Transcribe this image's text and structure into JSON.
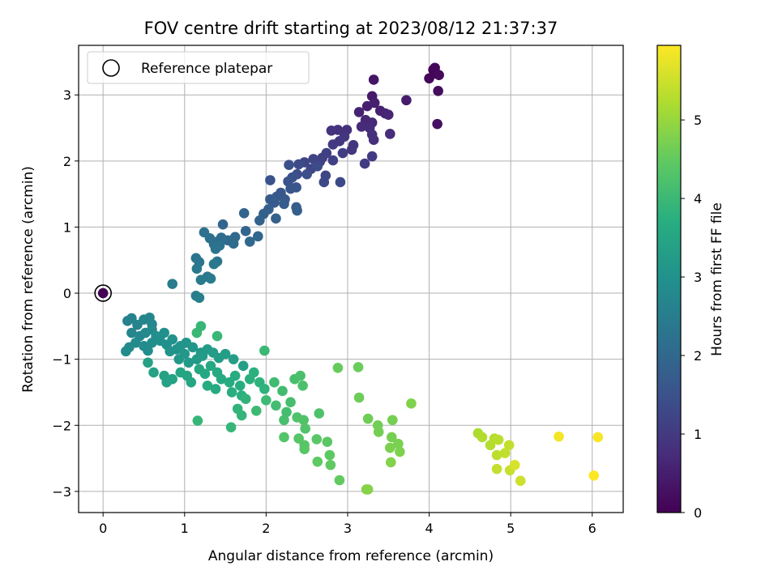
{
  "chart_data": {
    "type": "scatter",
    "title": "FOV centre drift starting at 2023/08/12 21:37:37",
    "xlabel": "Angular distance from reference (arcmin)",
    "ylabel": "Rotation from reference (arcmin)",
    "xlim": [
      -0.3,
      6.38
    ],
    "ylim": [
      -3.32,
      3.75
    ],
    "xticks": [
      0,
      1,
      2,
      3,
      4,
      5,
      6
    ],
    "yticks": [
      -3,
      -2,
      -1,
      0,
      1,
      2,
      3
    ],
    "xtick_labels": [
      "0",
      "1",
      "2",
      "3",
      "4",
      "5",
      "6"
    ],
    "ytick_labels": [
      "−3",
      "−2",
      "−1",
      "0",
      "1",
      "2",
      "3"
    ],
    "grid": true,
    "legend": {
      "placement": "upper-left",
      "label": "Reference platepar"
    },
    "reference_point": {
      "x": 0,
      "y": 0,
      "hours": 0
    },
    "colorbar": {
      "label": "Hours from first FF file",
      "range": [
        0,
        5.95
      ],
      "ticks": [
        0,
        1,
        2,
        3,
        4,
        5
      ],
      "tick_labels": [
        "0",
        "1",
        "2",
        "3",
        "4",
        "5"
      ],
      "colormap": "viridis"
    },
    "points": [
      {
        "x": 4.05,
        "y": 3.38,
        "t": 0.05
      },
      {
        "x": 4.09,
        "y": 3.32,
        "t": 0.07
      },
      {
        "x": 4.0,
        "y": 3.25,
        "t": 0.1
      },
      {
        "x": 4.07,
        "y": 3.41,
        "t": 0.12
      },
      {
        "x": 4.12,
        "y": 3.3,
        "t": 0.15
      },
      {
        "x": 4.11,
        "y": 3.06,
        "t": 0.2
      },
      {
        "x": 4.1,
        "y": 2.56,
        "t": 0.25
      },
      {
        "x": 3.32,
        "y": 3.23,
        "t": 0.35
      },
      {
        "x": 3.3,
        "y": 2.98,
        "t": 0.4
      },
      {
        "x": 3.72,
        "y": 2.92,
        "t": 0.45
      },
      {
        "x": 3.24,
        "y": 2.83,
        "t": 0.5
      },
      {
        "x": 3.33,
        "y": 2.88,
        "t": 0.52
      },
      {
        "x": 3.4,
        "y": 2.76,
        "t": 0.55
      },
      {
        "x": 3.14,
        "y": 2.74,
        "t": 0.58
      },
      {
        "x": 3.46,
        "y": 2.72,
        "t": 0.6
      },
      {
        "x": 3.5,
        "y": 2.7,
        "t": 0.62
      },
      {
        "x": 3.22,
        "y": 2.62,
        "t": 0.65
      },
      {
        "x": 3.3,
        "y": 2.58,
        "t": 0.68
      },
      {
        "x": 3.17,
        "y": 2.52,
        "t": 0.7
      },
      {
        "x": 3.27,
        "y": 2.5,
        "t": 0.72
      },
      {
        "x": 3.52,
        "y": 2.41,
        "t": 0.75
      },
      {
        "x": 3.3,
        "y": 2.4,
        "t": 0.78
      },
      {
        "x": 3.32,
        "y": 2.32,
        "t": 0.8
      },
      {
        "x": 2.99,
        "y": 2.47,
        "t": 0.82
      },
      {
        "x": 2.88,
        "y": 2.47,
        "t": 0.85
      },
      {
        "x": 2.8,
        "y": 2.46,
        "t": 0.87
      },
      {
        "x": 2.96,
        "y": 2.37,
        "t": 0.9
      },
      {
        "x": 3.07,
        "y": 2.24,
        "t": 0.92
      },
      {
        "x": 3.05,
        "y": 2.17,
        "t": 0.95
      },
      {
        "x": 2.9,
        "y": 2.3,
        "t": 0.97
      },
      {
        "x": 2.82,
        "y": 2.25,
        "t": 1.0
      },
      {
        "x": 3.3,
        "y": 2.07,
        "t": 1.02
      },
      {
        "x": 3.21,
        "y": 1.96,
        "t": 1.05
      },
      {
        "x": 2.94,
        "y": 2.12,
        "t": 1.07
      },
      {
        "x": 2.74,
        "y": 2.12,
        "t": 1.1
      },
      {
        "x": 2.69,
        "y": 2.05,
        "t": 1.12
      },
      {
        "x": 2.82,
        "y": 2.01,
        "t": 1.15
      },
      {
        "x": 2.66,
        "y": 1.99,
        "t": 1.17
      },
      {
        "x": 2.58,
        "y": 2.03,
        "t": 1.2
      },
      {
        "x": 2.47,
        "y": 1.98,
        "t": 1.22
      },
      {
        "x": 2.55,
        "y": 1.88,
        "t": 1.25
      },
      {
        "x": 2.73,
        "y": 1.78,
        "t": 1.27
      },
      {
        "x": 2.71,
        "y": 1.68,
        "t": 1.3
      },
      {
        "x": 2.91,
        "y": 1.68,
        "t": 1.32
      },
      {
        "x": 2.63,
        "y": 1.92,
        "t": 1.35
      },
      {
        "x": 2.4,
        "y": 1.95,
        "t": 1.37
      },
      {
        "x": 2.38,
        "y": 1.8,
        "t": 1.4
      },
      {
        "x": 2.5,
        "y": 1.8,
        "t": 1.42
      },
      {
        "x": 2.28,
        "y": 1.94,
        "t": 1.45
      },
      {
        "x": 2.32,
        "y": 1.75,
        "t": 1.47
      },
      {
        "x": 2.27,
        "y": 1.69,
        "t": 1.5
      },
      {
        "x": 2.05,
        "y": 1.71,
        "t": 1.52
      },
      {
        "x": 2.37,
        "y": 1.6,
        "t": 1.55
      },
      {
        "x": 2.3,
        "y": 1.58,
        "t": 1.57
      },
      {
        "x": 2.18,
        "y": 1.52,
        "t": 1.6
      },
      {
        "x": 2.13,
        "y": 1.46,
        "t": 1.62
      },
      {
        "x": 2.23,
        "y": 1.42,
        "t": 1.65
      },
      {
        "x": 2.05,
        "y": 1.42,
        "t": 1.67
      },
      {
        "x": 2.1,
        "y": 1.37,
        "t": 1.7
      },
      {
        "x": 2.22,
        "y": 1.35,
        "t": 1.72
      },
      {
        "x": 2.37,
        "y": 1.3,
        "t": 1.75
      },
      {
        "x": 2.38,
        "y": 1.25,
        "t": 1.77
      },
      {
        "x": 2.03,
        "y": 1.27,
        "t": 1.8
      },
      {
        "x": 1.97,
        "y": 1.2,
        "t": 1.82
      },
      {
        "x": 2.12,
        "y": 1.13,
        "t": 1.85
      },
      {
        "x": 1.92,
        "y": 1.1,
        "t": 1.87
      },
      {
        "x": 1.73,
        "y": 1.21,
        "t": 1.9
      },
      {
        "x": 1.47,
        "y": 1.04,
        "t": 1.92
      },
      {
        "x": 1.75,
        "y": 0.94,
        "t": 1.95
      },
      {
        "x": 1.9,
        "y": 0.86,
        "t": 1.97
      },
      {
        "x": 1.8,
        "y": 0.78,
        "t": 2.0
      },
      {
        "x": 1.62,
        "y": 0.85,
        "t": 2.02
      },
      {
        "x": 1.53,
        "y": 0.8,
        "t": 2.05
      },
      {
        "x": 1.6,
        "y": 0.75,
        "t": 2.07
      },
      {
        "x": 1.45,
        "y": 0.84,
        "t": 2.1
      },
      {
        "x": 1.4,
        "y": 0.78,
        "t": 2.12
      },
      {
        "x": 1.36,
        "y": 0.74,
        "t": 2.15
      },
      {
        "x": 1.31,
        "y": 0.83,
        "t": 2.17
      },
      {
        "x": 1.24,
        "y": 0.92,
        "t": 2.2
      },
      {
        "x": 1.43,
        "y": 0.72,
        "t": 2.22
      },
      {
        "x": 1.38,
        "y": 0.67,
        "t": 2.25
      },
      {
        "x": 1.14,
        "y": 0.53,
        "t": 2.27
      },
      {
        "x": 1.18,
        "y": 0.47,
        "t": 2.3
      },
      {
        "x": 1.4,
        "y": 0.48,
        "t": 2.32
      },
      {
        "x": 1.36,
        "y": 0.44,
        "t": 2.35
      },
      {
        "x": 1.15,
        "y": 0.37,
        "t": 2.37
      },
      {
        "x": 1.28,
        "y": 0.25,
        "t": 2.4
      },
      {
        "x": 1.2,
        "y": 0.2,
        "t": 2.42
      },
      {
        "x": 1.32,
        "y": 0.22,
        "t": 2.45
      },
      {
        "x": 0.85,
        "y": 0.14,
        "t": 2.47
      },
      {
        "x": 1.14,
        "y": -0.04,
        "t": 2.5
      },
      {
        "x": 1.18,
        "y": -0.07,
        "t": 2.52
      },
      {
        "x": 0.3,
        "y": -0.42,
        "t": 2.6
      },
      {
        "x": 0.35,
        "y": -0.38,
        "t": 2.62
      },
      {
        "x": 0.42,
        "y": -0.48,
        "t": 2.64
      },
      {
        "x": 0.5,
        "y": -0.4,
        "t": 2.66
      },
      {
        "x": 0.57,
        "y": -0.37,
        "t": 2.68
      },
      {
        "x": 0.6,
        "y": -0.47,
        "t": 2.7
      },
      {
        "x": 0.35,
        "y": -0.6,
        "t": 2.72
      },
      {
        "x": 0.45,
        "y": -0.65,
        "t": 2.74
      },
      {
        "x": 0.52,
        "y": -0.6,
        "t": 2.76
      },
      {
        "x": 0.6,
        "y": -0.55,
        "t": 2.78
      },
      {
        "x": 0.4,
        "y": -0.75,
        "t": 2.8
      },
      {
        "x": 0.32,
        "y": -0.82,
        "t": 2.82
      },
      {
        "x": 0.28,
        "y": -0.88,
        "t": 2.84
      },
      {
        "x": 0.5,
        "y": -0.8,
        "t": 2.86
      },
      {
        "x": 0.55,
        "y": -0.87,
        "t": 2.88
      },
      {
        "x": 0.6,
        "y": -0.75,
        "t": 2.9
      },
      {
        "x": 0.65,
        "y": -0.65,
        "t": 2.92
      },
      {
        "x": 0.75,
        "y": -0.6,
        "t": 2.94
      },
      {
        "x": 0.7,
        "y": -0.72,
        "t": 2.96
      },
      {
        "x": 0.78,
        "y": -0.78,
        "t": 2.98
      },
      {
        "x": 0.85,
        "y": -0.7,
        "t": 3.0
      },
      {
        "x": 0.9,
        "y": -0.85,
        "t": 3.02
      },
      {
        "x": 0.82,
        "y": -0.88,
        "t": 3.04
      },
      {
        "x": 0.95,
        "y": -0.8,
        "t": 3.06
      },
      {
        "x": 1.02,
        "y": -0.75,
        "t": 3.08
      },
      {
        "x": 1.1,
        "y": -0.82,
        "t": 3.1
      },
      {
        "x": 1.2,
        "y": -0.9,
        "t": 3.12
      },
      {
        "x": 1.0,
        "y": -0.92,
        "t": 3.14
      },
      {
        "x": 0.93,
        "y": -1.0,
        "t": 3.16
      },
      {
        "x": 1.05,
        "y": -1.05,
        "t": 3.18
      },
      {
        "x": 1.15,
        "y": -1.0,
        "t": 3.2
      },
      {
        "x": 1.22,
        "y": -0.95,
        "t": 3.22
      },
      {
        "x": 1.28,
        "y": -0.85,
        "t": 3.24
      },
      {
        "x": 1.35,
        "y": -0.9,
        "t": 3.26
      },
      {
        "x": 1.42,
        "y": -0.98,
        "t": 3.28
      },
      {
        "x": 1.5,
        "y": -0.92,
        "t": 3.3
      },
      {
        "x": 1.6,
        "y": -1.0,
        "t": 3.32
      },
      {
        "x": 1.72,
        "y": -1.1,
        "t": 3.34
      },
      {
        "x": 0.55,
        "y": -1.05,
        "t": 3.36
      },
      {
        "x": 0.62,
        "y": -1.2,
        "t": 3.38
      },
      {
        "x": 0.75,
        "y": -1.25,
        "t": 3.4
      },
      {
        "x": 0.78,
        "y": -1.35,
        "t": 3.42
      },
      {
        "x": 0.85,
        "y": -1.3,
        "t": 3.44
      },
      {
        "x": 0.95,
        "y": -1.2,
        "t": 3.46
      },
      {
        "x": 1.03,
        "y": -1.25,
        "t": 3.48
      },
      {
        "x": 1.08,
        "y": -1.35,
        "t": 3.5
      },
      {
        "x": 1.18,
        "y": -1.15,
        "t": 3.52
      },
      {
        "x": 1.25,
        "y": -1.22,
        "t": 3.54
      },
      {
        "x": 1.32,
        "y": -1.1,
        "t": 3.56
      },
      {
        "x": 1.4,
        "y": -1.2,
        "t": 3.58
      },
      {
        "x": 1.45,
        "y": -1.3,
        "t": 3.6
      },
      {
        "x": 1.38,
        "y": -1.45,
        "t": 3.62
      },
      {
        "x": 1.28,
        "y": -1.4,
        "t": 3.64
      },
      {
        "x": 1.55,
        "y": -1.35,
        "t": 3.66
      },
      {
        "x": 1.62,
        "y": -1.25,
        "t": 3.68
      },
      {
        "x": 1.68,
        "y": -1.4,
        "t": 3.7
      },
      {
        "x": 1.58,
        "y": -1.5,
        "t": 3.72
      },
      {
        "x": 1.7,
        "y": -1.55,
        "t": 3.74
      },
      {
        "x": 1.8,
        "y": -1.3,
        "t": 3.76
      },
      {
        "x": 1.85,
        "y": -1.2,
        "t": 3.78
      },
      {
        "x": 1.92,
        "y": -1.35,
        "t": 3.8
      },
      {
        "x": 1.98,
        "y": -1.45,
        "t": 3.82
      },
      {
        "x": 1.75,
        "y": -1.6,
        "t": 3.84
      },
      {
        "x": 1.65,
        "y": -1.75,
        "t": 3.86
      },
      {
        "x": 1.7,
        "y": -1.85,
        "t": 3.88
      },
      {
        "x": 1.57,
        "y": -2.03,
        "t": 3.9
      },
      {
        "x": 1.16,
        "y": -1.93,
        "t": 3.92
      },
      {
        "x": 1.2,
        "y": -0.5,
        "t": 3.94
      },
      {
        "x": 1.4,
        "y": -0.65,
        "t": 3.96
      },
      {
        "x": 1.15,
        "y": -0.6,
        "t": 3.98
      },
      {
        "x": 1.98,
        "y": -0.87,
        "t": 4.0
      },
      {
        "x": 1.88,
        "y": -1.78,
        "t": 4.02
      },
      {
        "x": 2.0,
        "y": -1.62,
        "t": 4.04
      },
      {
        "x": 2.1,
        "y": -1.35,
        "t": 4.06
      },
      {
        "x": 2.2,
        "y": -1.48,
        "t": 4.08
      },
      {
        "x": 2.12,
        "y": -1.7,
        "t": 4.1
      },
      {
        "x": 2.25,
        "y": -1.8,
        "t": 4.12
      },
      {
        "x": 2.3,
        "y": -1.65,
        "t": 4.14
      },
      {
        "x": 2.22,
        "y": -1.92,
        "t": 4.16
      },
      {
        "x": 2.35,
        "y": -1.3,
        "t": 4.18
      },
      {
        "x": 2.42,
        "y": -1.25,
        "t": 4.2
      },
      {
        "x": 2.45,
        "y": -1.4,
        "t": 4.22
      },
      {
        "x": 2.65,
        "y": -1.82,
        "t": 4.24
      },
      {
        "x": 2.38,
        "y": -1.88,
        "t": 4.26
      },
      {
        "x": 2.46,
        "y": -1.92,
        "t": 4.28
      },
      {
        "x": 2.48,
        "y": -2.05,
        "t": 4.3
      },
      {
        "x": 2.22,
        "y": -2.18,
        "t": 4.32
      },
      {
        "x": 2.4,
        "y": -2.2,
        "t": 4.34
      },
      {
        "x": 2.47,
        "y": -2.3,
        "t": 4.36
      },
      {
        "x": 2.47,
        "y": -2.36,
        "t": 4.38
      },
      {
        "x": 2.62,
        "y": -2.21,
        "t": 4.4
      },
      {
        "x": 2.75,
        "y": -2.25,
        "t": 4.42
      },
      {
        "x": 2.78,
        "y": -2.45,
        "t": 4.44
      },
      {
        "x": 2.63,
        "y": -2.55,
        "t": 4.46
      },
      {
        "x": 2.79,
        "y": -2.6,
        "t": 4.48
      },
      {
        "x": 2.9,
        "y": -2.83,
        "t": 4.5
      },
      {
        "x": 2.88,
        "y": -1.13,
        "t": 4.55
      },
      {
        "x": 3.13,
        "y": -1.12,
        "t": 4.58
      },
      {
        "x": 3.14,
        "y": -1.58,
        "t": 4.6
      },
      {
        "x": 3.25,
        "y": -1.9,
        "t": 4.62
      },
      {
        "x": 3.37,
        "y": -2.0,
        "t": 4.64
      },
      {
        "x": 3.38,
        "y": -2.1,
        "t": 4.66
      },
      {
        "x": 3.55,
        "y": -1.92,
        "t": 4.68
      },
      {
        "x": 3.54,
        "y": -2.18,
        "t": 4.7
      },
      {
        "x": 3.62,
        "y": -2.28,
        "t": 4.72
      },
      {
        "x": 3.52,
        "y": -2.34,
        "t": 4.74
      },
      {
        "x": 3.64,
        "y": -2.4,
        "t": 4.76
      },
      {
        "x": 3.78,
        "y": -1.67,
        "t": 4.78
      },
      {
        "x": 3.53,
        "y": -2.56,
        "t": 4.8
      },
      {
        "x": 3.23,
        "y": -2.97,
        "t": 4.82
      },
      {
        "x": 3.25,
        "y": -2.97,
        "t": 4.84
      },
      {
        "x": 4.6,
        "y": -2.12,
        "t": 5.2
      },
      {
        "x": 4.65,
        "y": -2.18,
        "t": 5.25
      },
      {
        "x": 4.75,
        "y": -2.3,
        "t": 5.28
      },
      {
        "x": 4.8,
        "y": -2.2,
        "t": 5.3
      },
      {
        "x": 4.85,
        "y": -2.22,
        "t": 5.32
      },
      {
        "x": 4.83,
        "y": -2.45,
        "t": 5.35
      },
      {
        "x": 4.93,
        "y": -2.42,
        "t": 5.38
      },
      {
        "x": 4.98,
        "y": -2.3,
        "t": 5.4
      },
      {
        "x": 4.83,
        "y": -2.66,
        "t": 5.42
      },
      {
        "x": 4.99,
        "y": -2.68,
        "t": 5.45
      },
      {
        "x": 5.12,
        "y": -2.84,
        "t": 5.5
      },
      {
        "x": 5.05,
        "y": -2.6,
        "t": 5.6
      },
      {
        "x": 5.59,
        "y": -2.17,
        "t": 5.85
      },
      {
        "x": 6.07,
        "y": -2.18,
        "t": 5.9
      },
      {
        "x": 6.02,
        "y": -2.76,
        "t": 5.95
      }
    ]
  }
}
